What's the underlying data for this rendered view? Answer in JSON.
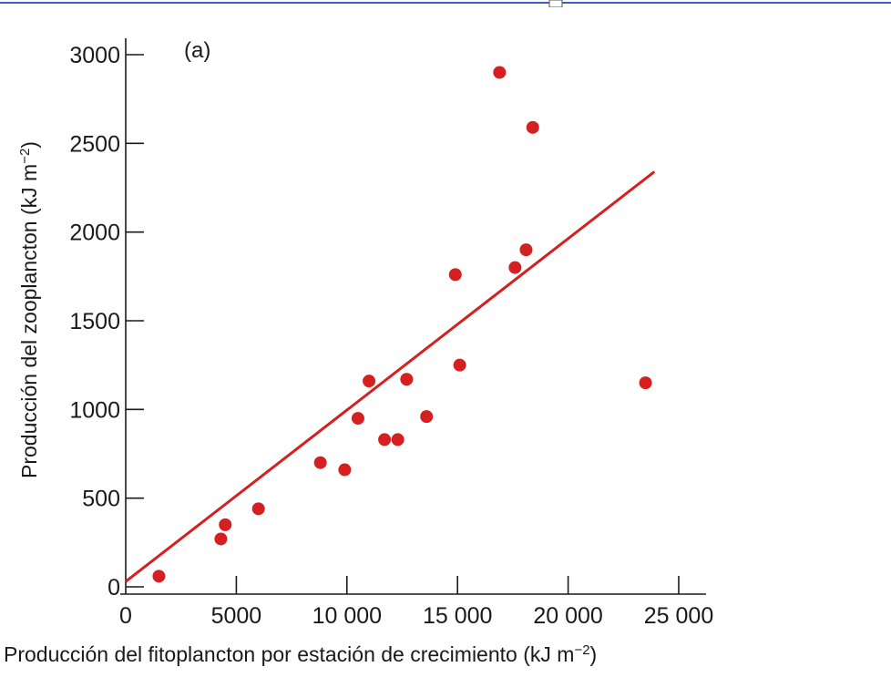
{
  "chart_data": {
    "type": "scatter",
    "panel_label": "(a)",
    "xlabel": "Producción del fitoplancton por estación de crecimiento (kJ m",
    "xlabel_sup": "−2",
    "xlabel_end": ")",
    "ylabel": "Producción del zooplancton (kJ m",
    "ylabel_sup": "−2",
    "ylabel_end": ")",
    "xlim": [
      0,
      26000
    ],
    "ylim": [
      0,
      3100
    ],
    "x_ticks": [
      0,
      5000,
      10000,
      15000,
      20000,
      25000
    ],
    "x_tick_labels": [
      "0",
      "5000",
      "10 000",
      "15 000",
      "20 000",
      "25 000"
    ],
    "y_ticks": [
      0,
      500,
      1000,
      1500,
      2000,
      2500,
      3000
    ],
    "y_tick_labels": [
      "0",
      "500",
      "1000",
      "1500",
      "2000",
      "2500",
      "3000"
    ],
    "grid": false,
    "point_color": "#d42020",
    "line_color": "#d42020",
    "points": [
      {
        "x": 1500,
        "y": 60
      },
      {
        "x": 4300,
        "y": 270
      },
      {
        "x": 4500,
        "y": 350
      },
      {
        "x": 6000,
        "y": 440
      },
      {
        "x": 8800,
        "y": 700
      },
      {
        "x": 9900,
        "y": 660
      },
      {
        "x": 10500,
        "y": 950
      },
      {
        "x": 11000,
        "y": 1160
      },
      {
        "x": 11700,
        "y": 830
      },
      {
        "x": 12300,
        "y": 830
      },
      {
        "x": 12700,
        "y": 1170
      },
      {
        "x": 13600,
        "y": 960
      },
      {
        "x": 14900,
        "y": 1760
      },
      {
        "x": 15100,
        "y": 1250
      },
      {
        "x": 16900,
        "y": 2900
      },
      {
        "x": 17600,
        "y": 1800
      },
      {
        "x": 18100,
        "y": 1900
      },
      {
        "x": 18400,
        "y": 2590
      },
      {
        "x": 23500,
        "y": 1150
      }
    ],
    "fit_line": {
      "x": [
        0,
        23900
      ],
      "y": [
        30,
        2340
      ]
    }
  }
}
